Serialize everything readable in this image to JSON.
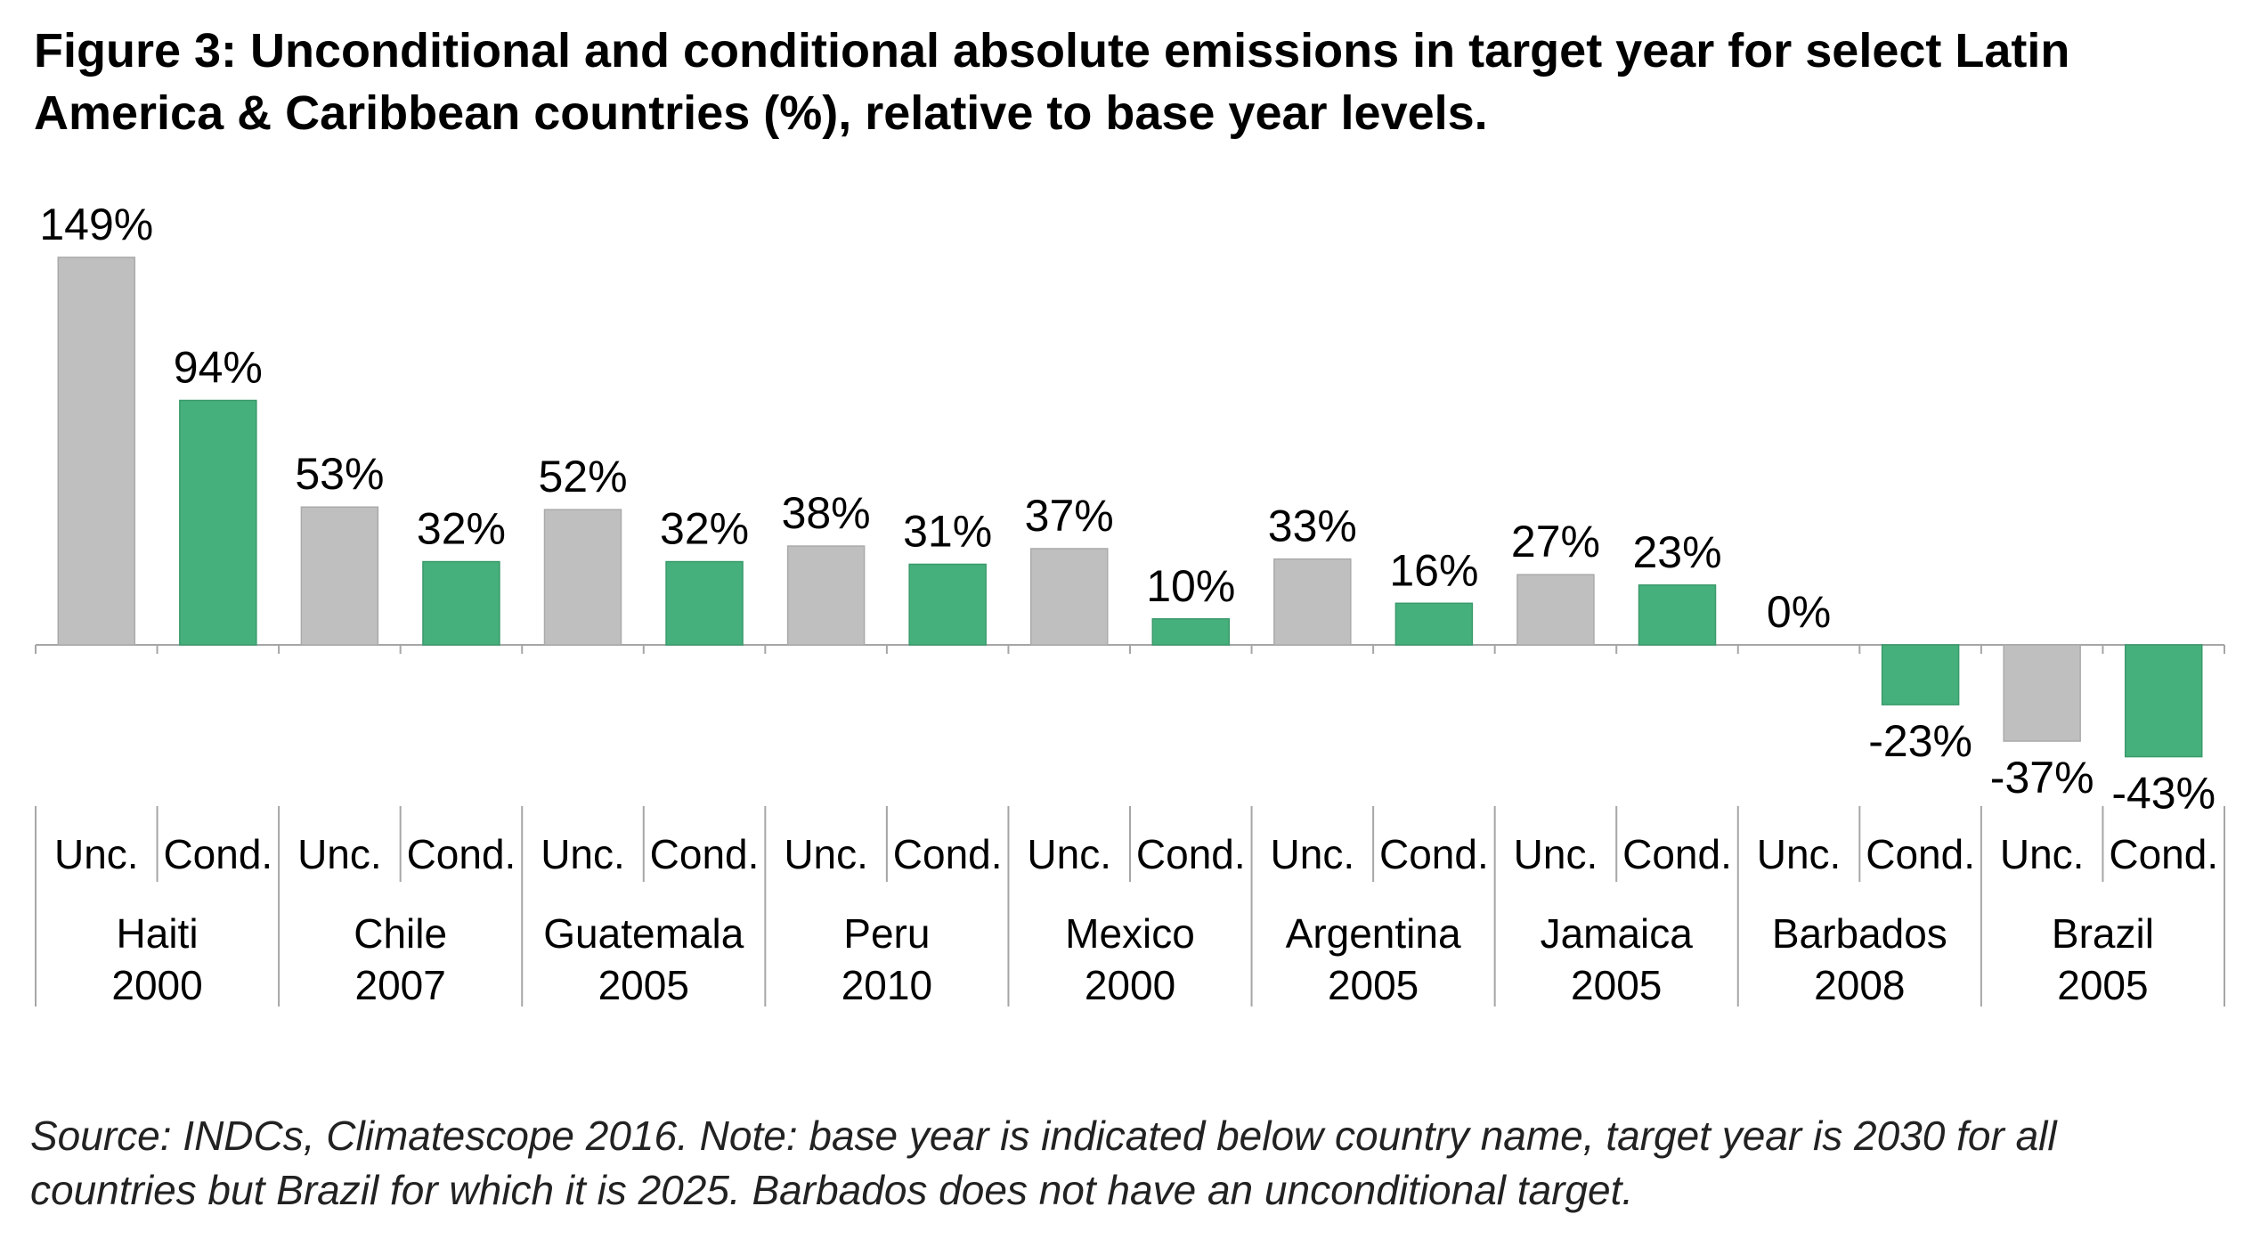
{
  "title": "Figure 3: Unconditional and conditional absolute emissions in target year for select Latin America & Caribbean countries (%), relative to base year levels.",
  "note": "Source: INDCs, Climatescope 2016. Note: base year is indicated below country name, target year is 2030 for all countries but Brazil for which it is 2025. Barbados does not have an unconditional target.",
  "colors": {
    "unconditional": "#c0bfc0",
    "conditional": "#46b07d",
    "axis": "#a6a6a6"
  },
  "chart_data": {
    "type": "bar",
    "unit": "%",
    "series_labels": {
      "unconditional": "Unc.",
      "conditional": "Cond."
    },
    "groups": [
      {
        "country": "Haiti",
        "base_year": "2000",
        "bars": [
          {
            "kind": "unconditional",
            "value": 149,
            "label": "149%"
          },
          {
            "kind": "conditional",
            "value": 94,
            "label": "94%"
          }
        ]
      },
      {
        "country": "Chile",
        "base_year": "2007",
        "bars": [
          {
            "kind": "unconditional",
            "value": 53,
            "label": "53%"
          },
          {
            "kind": "conditional",
            "value": 32,
            "label": "32%"
          }
        ]
      },
      {
        "country": "Guatemala",
        "base_year": "2005",
        "bars": [
          {
            "kind": "unconditional",
            "value": 52,
            "label": "52%"
          },
          {
            "kind": "conditional",
            "value": 32,
            "label": "32%"
          }
        ]
      },
      {
        "country": "Peru",
        "base_year": "2010",
        "bars": [
          {
            "kind": "unconditional",
            "value": 38,
            "label": "38%"
          },
          {
            "kind": "conditional",
            "value": 31,
            "label": "31%"
          }
        ]
      },
      {
        "country": "Mexico",
        "base_year": "2000",
        "bars": [
          {
            "kind": "unconditional",
            "value": 37,
            "label": "37%"
          },
          {
            "kind": "conditional",
            "value": 10,
            "label": "10%"
          }
        ]
      },
      {
        "country": "Argentina",
        "base_year": "2005",
        "bars": [
          {
            "kind": "unconditional",
            "value": 33,
            "label": "33%"
          },
          {
            "kind": "conditional",
            "value": 16,
            "label": "16%"
          }
        ]
      },
      {
        "country": "Jamaica",
        "base_year": "2005",
        "bars": [
          {
            "kind": "unconditional",
            "value": 27,
            "label": "27%"
          },
          {
            "kind": "conditional",
            "value": 23,
            "label": "23%"
          }
        ]
      },
      {
        "country": "Barbados",
        "base_year": "2008",
        "bars": [
          {
            "kind": "unconditional",
            "value": 0,
            "label": "0%"
          },
          {
            "kind": "conditional",
            "value": -23,
            "label": "-23%"
          }
        ]
      },
      {
        "country": "Brazil",
        "base_year": "2005",
        "bars": [
          {
            "kind": "unconditional",
            "value": -37,
            "label": "-37%"
          },
          {
            "kind": "conditional",
            "value": -43,
            "label": "-43%"
          }
        ]
      }
    ]
  }
}
